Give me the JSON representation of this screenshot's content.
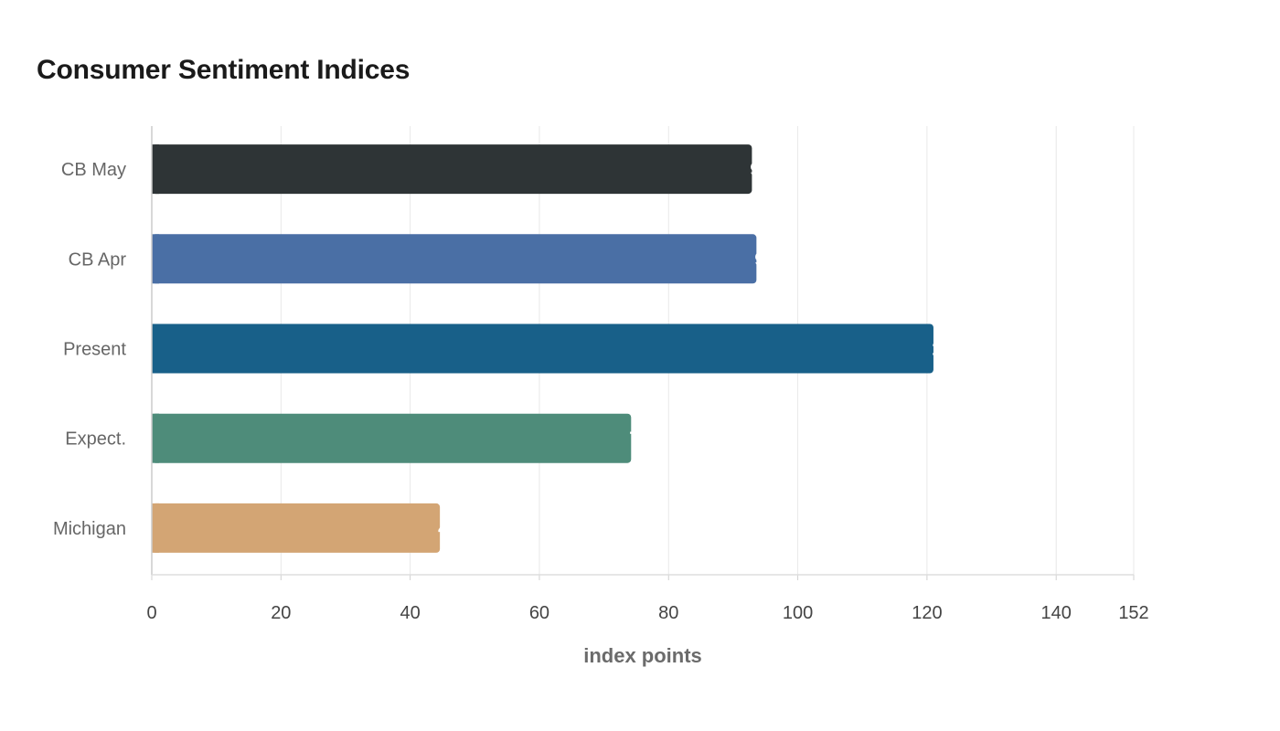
{
  "chart_data": {
    "type": "bar",
    "orientation": "horizontal",
    "title": "Consumer Sentiment Indices",
    "xlabel": "index points",
    "ylabel": "",
    "categories": [
      "CB May",
      "CB Apr",
      "Present",
      "Expect.",
      "Michigan"
    ],
    "values": [
      92.9,
      93.6,
      121.0,
      74.2,
      44.6
    ],
    "colors": [
      "#2e3436",
      "#4a6fa5",
      "#186089",
      "#4e8c7a",
      "#d3a574"
    ],
    "xlim": [
      0,
      152
    ],
    "xticks": [
      0,
      20,
      40,
      60,
      80,
      100,
      120,
      140,
      152
    ],
    "grid": true,
    "legend": "none"
  }
}
